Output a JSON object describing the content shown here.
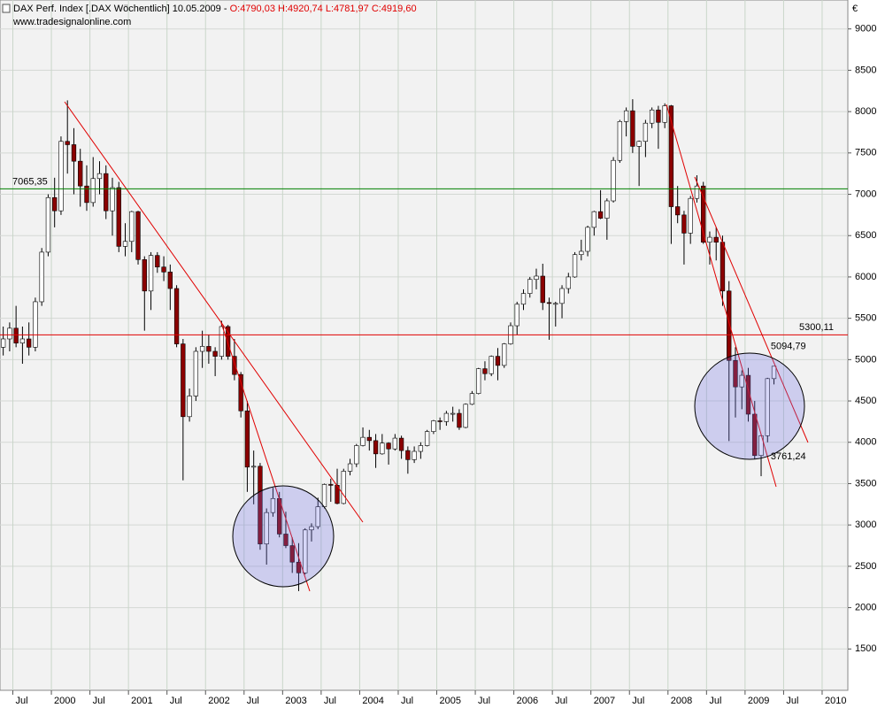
{
  "chart_data": {
    "type": "candlestick",
    "title": "DAX Perf. Index [.DAX  Wöchentlich] 10.05.2009 - ",
    "ohlc_label": "O:4790,03 H:4920,74 L:4781,97 C:4919,60",
    "subtitle": "www.tradesignalonline.com",
    "currency": "€",
    "up_color": "#ffffff",
    "down_color": "#8b0000",
    "x": [
      "1999-05",
      "1999-06",
      "1999-07",
      "1999-08",
      "1999-09",
      "1999-10",
      "1999-11",
      "1999-12",
      "2000-01",
      "2000-02",
      "2000-03",
      "2000-04",
      "2000-05",
      "2000-06",
      "2000-07",
      "2000-08",
      "2000-09",
      "2000-10",
      "2000-11",
      "2000-12",
      "2001-01",
      "2001-02",
      "2001-03",
      "2001-04",
      "2001-05",
      "2001-06",
      "2001-07",
      "2001-08",
      "2001-09",
      "2001-10",
      "2001-11",
      "2001-12",
      "2002-01",
      "2002-02",
      "2002-03",
      "2002-04",
      "2002-05",
      "2002-06",
      "2002-07",
      "2002-08",
      "2002-09",
      "2002-10",
      "2002-11",
      "2002-12",
      "2003-01",
      "2003-02",
      "2003-03",
      "2003-04",
      "2003-05",
      "2003-06",
      "2003-07",
      "2003-08",
      "2003-09",
      "2003-10",
      "2003-11",
      "2003-12",
      "2004-01",
      "2004-02",
      "2004-03",
      "2004-04",
      "2004-05",
      "2004-06",
      "2004-07",
      "2004-08",
      "2004-09",
      "2004-10",
      "2004-11",
      "2004-12",
      "2005-01",
      "2005-02",
      "2005-03",
      "2005-04",
      "2005-05",
      "2005-06",
      "2005-07",
      "2005-08",
      "2005-09",
      "2005-10",
      "2005-11",
      "2005-12",
      "2006-01",
      "2006-02",
      "2006-03",
      "2006-04",
      "2006-05",
      "2006-06",
      "2006-07",
      "2006-08",
      "2006-09",
      "2006-10",
      "2006-11",
      "2006-12",
      "2007-01",
      "2007-02",
      "2007-03",
      "2007-04",
      "2007-05",
      "2007-06",
      "2007-07",
      "2007-08",
      "2007-09",
      "2007-10",
      "2007-11",
      "2007-12",
      "2008-01",
      "2008-02",
      "2008-03",
      "2008-04",
      "2008-05",
      "2008-06",
      "2008-07",
      "2008-08",
      "2008-09",
      "2008-10",
      "2008-11",
      "2008-12",
      "2009-01",
      "2009-02",
      "2009-03",
      "2009-04",
      "2009-05"
    ],
    "ohlc": [
      [
        5150,
        5400,
        5050,
        5250
      ],
      [
        5250,
        5450,
        5100,
        5380
      ],
      [
        5380,
        5650,
        5150,
        5200
      ],
      [
        5200,
        5400,
        4950,
        5250
      ],
      [
        5250,
        5450,
        5050,
        5150
      ],
      [
        5150,
        5750,
        5100,
        5700
      ],
      [
        5700,
        6350,
        5650,
        6300
      ],
      [
        6300,
        7000,
        6250,
        6960
      ],
      [
        6960,
        7200,
        6600,
        6800
      ],
      [
        6800,
        7700,
        6750,
        7640
      ],
      [
        7640,
        8136,
        7250,
        7600
      ],
      [
        7600,
        7800,
        7000,
        7400
      ],
      [
        7400,
        7550,
        6850,
        7100
      ],
      [
        7100,
        7350,
        6800,
        6900
      ],
      [
        6900,
        7450,
        6850,
        7190
      ],
      [
        7190,
        7400,
        7000,
        7250
      ],
      [
        7250,
        7350,
        6700,
        6800
      ],
      [
        6800,
        7200,
        6500,
        7080
      ],
      [
        7080,
        7150,
        6300,
        6370
      ],
      [
        6370,
        6650,
        6250,
        6430
      ],
      [
        6430,
        6800,
        6300,
        6790
      ],
      [
        6790,
        6800,
        6150,
        6210
      ],
      [
        6210,
        6250,
        5350,
        5830
      ],
      [
        5830,
        6300,
        5600,
        6260
      ],
      [
        6260,
        6300,
        6050,
        6120
      ],
      [
        6120,
        6250,
        5950,
        6060
      ],
      [
        6060,
        6150,
        5600,
        5860
      ],
      [
        5860,
        5900,
        5150,
        5190
      ],
      [
        5190,
        5250,
        3540,
        4310
      ],
      [
        4310,
        4650,
        4250,
        4560
      ],
      [
        4560,
        5150,
        4500,
        5100
      ],
      [
        5100,
        5350,
        4900,
        5160
      ],
      [
        5160,
        5300,
        4950,
        5100
      ],
      [
        5100,
        5150,
        4800,
        5040
      ],
      [
        5040,
        5470,
        5000,
        5400
      ],
      [
        5400,
        5420,
        5000,
        5040
      ],
      [
        5040,
        5250,
        4750,
        4820
      ],
      [
        4820,
        4850,
        4300,
        4380
      ],
      [
        4380,
        4500,
        3400,
        3700
      ],
      [
        3700,
        3900,
        3250,
        3710
      ],
      [
        3710,
        3750,
        2700,
        2770
      ],
      [
        2770,
        3200,
        2520,
        3150
      ],
      [
        3150,
        3450,
        3100,
        3320
      ],
      [
        3320,
        3400,
        2850,
        2890
      ],
      [
        2890,
        3160,
        2720,
        2750
      ],
      [
        2750,
        2850,
        2420,
        2550
      ],
      [
        2550,
        2780,
        2200,
        2420
      ],
      [
        2420,
        2960,
        2400,
        2940
      ],
      [
        2940,
        3020,
        2800,
        2980
      ],
      [
        2980,
        3330,
        2950,
        3220
      ],
      [
        3220,
        3500,
        3200,
        3490
      ],
      [
        3490,
        3560,
        3280,
        3480
      ],
      [
        3480,
        3680,
        3250,
        3260
      ],
      [
        3260,
        3680,
        3250,
        3650
      ],
      [
        3650,
        3800,
        3600,
        3740
      ],
      [
        3740,
        3980,
        3700,
        3960
      ],
      [
        3960,
        4180,
        3950,
        4060
      ],
      [
        4060,
        4150,
        3900,
        4020
      ],
      [
        4020,
        4100,
        3690,
        3860
      ],
      [
        3860,
        4100,
        3850,
        3990
      ],
      [
        3990,
        4000,
        3730,
        3920
      ],
      [
        3920,
        4100,
        3900,
        4050
      ],
      [
        4050,
        4080,
        3800,
        3900
      ],
      [
        3900,
        3950,
        3620,
        3790
      ],
      [
        3790,
        3950,
        3750,
        3890
      ],
      [
        3890,
        4000,
        3800,
        3960
      ],
      [
        3960,
        4150,
        3950,
        4130
      ],
      [
        4130,
        4270,
        4100,
        4260
      ],
      [
        4260,
        4300,
        4150,
        4250
      ],
      [
        4250,
        4380,
        4200,
        4350
      ],
      [
        4350,
        4430,
        4250,
        4350
      ],
      [
        4350,
        4400,
        4150,
        4180
      ],
      [
        4180,
        4470,
        4170,
        4460
      ],
      [
        4460,
        4620,
        4450,
        4590
      ],
      [
        4590,
        4900,
        4580,
        4890
      ],
      [
        4890,
        4980,
        4750,
        4830
      ],
      [
        4830,
        5050,
        4800,
        5040
      ],
      [
        5040,
        5140,
        4750,
        4930
      ],
      [
        4930,
        5200,
        4900,
        5190
      ],
      [
        5190,
        5450,
        5180,
        5410
      ],
      [
        5410,
        5700,
        5300,
        5670
      ],
      [
        5670,
        5850,
        5600,
        5800
      ],
      [
        5800,
        6000,
        5750,
        5970
      ],
      [
        5970,
        6100,
        5850,
        6010
      ],
      [
        6010,
        6160,
        5600,
        5690
      ],
      [
        5690,
        5750,
        5240,
        5680
      ],
      [
        5680,
        5700,
        5400,
        5680
      ],
      [
        5680,
        5900,
        5500,
        5860
      ],
      [
        5860,
        6050,
        5800,
        6000
      ],
      [
        6000,
        6300,
        5990,
        6270
      ],
      [
        6270,
        6450,
        6200,
        6310
      ],
      [
        6310,
        6620,
        6250,
        6600
      ],
      [
        6600,
        6800,
        6500,
        6790
      ],
      [
        6790,
        7050,
        6700,
        6710
      ],
      [
        6710,
        6950,
        6450,
        6920
      ],
      [
        6920,
        7450,
        6900,
        7410
      ],
      [
        7410,
        7900,
        7380,
        7880
      ],
      [
        7880,
        8050,
        7700,
        8010
      ],
      [
        8010,
        8150,
        7500,
        7580
      ],
      [
        7580,
        7650,
        7100,
        7640
      ],
      [
        7640,
        7900,
        7450,
        7860
      ],
      [
        7860,
        8050,
        7800,
        8020
      ],
      [
        8020,
        8070,
        7550,
        7870
      ],
      [
        7870,
        8100,
        7800,
        8070
      ],
      [
        8070,
        8080,
        6400,
        6850
      ],
      [
        6850,
        7100,
        6650,
        6750
      ],
      [
        6750,
        6800,
        6150,
        6530
      ],
      [
        6530,
        6980,
        6400,
        6950
      ],
      [
        6950,
        7230,
        6900,
        7100
      ],
      [
        7100,
        7150,
        6400,
        6420
      ],
      [
        6420,
        6550,
        6150,
        6480
      ],
      [
        6480,
        6600,
        6200,
        6420
      ],
      [
        6420,
        6500,
        5650,
        5830
      ],
      [
        5830,
        5950,
        4015,
        4990
      ],
      [
        4990,
        5150,
        4300,
        4670
      ],
      [
        4670,
        4870,
        4400,
        4810
      ],
      [
        4810,
        4900,
        4250,
        4340
      ],
      [
        4340,
        4500,
        3800,
        3840
      ],
      [
        3840,
        4100,
        3590,
        4080
      ],
      [
        4080,
        4780,
        4000,
        4770
      ],
      [
        4770,
        4920,
        4700,
        4920
      ]
    ],
    "xlim": [
      "1999-05",
      "2010-05"
    ],
    "xticks": [
      {
        "value": "1999-07",
        "label": "Jul"
      },
      {
        "value": "2000-01",
        "label": "2000"
      },
      {
        "value": "2000-07",
        "label": "Jul"
      },
      {
        "value": "2001-01",
        "label": "2001"
      },
      {
        "value": "2001-07",
        "label": "Jul"
      },
      {
        "value": "2002-01",
        "label": "2002"
      },
      {
        "value": "2002-07",
        "label": "Jul"
      },
      {
        "value": "2003-01",
        "label": "2003"
      },
      {
        "value": "2003-07",
        "label": "Jul"
      },
      {
        "value": "2004-01",
        "label": "2004"
      },
      {
        "value": "2004-07",
        "label": "Jul"
      },
      {
        "value": "2005-01",
        "label": "2005"
      },
      {
        "value": "2005-07",
        "label": "Jul"
      },
      {
        "value": "2006-01",
        "label": "2006"
      },
      {
        "value": "2006-07",
        "label": "Jul"
      },
      {
        "value": "2007-01",
        "label": "2007"
      },
      {
        "value": "2007-07",
        "label": "Jul"
      },
      {
        "value": "2008-01",
        "label": "2008"
      },
      {
        "value": "2008-07",
        "label": "Jul"
      },
      {
        "value": "2009-01",
        "label": "2009"
      },
      {
        "value": "2009-07",
        "label": "Jul"
      },
      {
        "value": "2010-01",
        "label": "2010"
      }
    ],
    "ylim": [
      1000,
      9350
    ],
    "yticks": [
      1500,
      2000,
      2500,
      3000,
      3500,
      4000,
      4500,
      5000,
      5500,
      6000,
      6500,
      7000,
      7500,
      8000,
      8500,
      9000
    ],
    "grid": true,
    "hlines": [
      {
        "value": 7065.35,
        "label": "7065,35",
        "color": "#008000"
      },
      {
        "value": 5300.11,
        "label": "5300,11",
        "color": "#e00000"
      }
    ],
    "annotations": [
      {
        "x": "2009-05",
        "value": 5094.79,
        "label": "5094,79"
      },
      {
        "x": "2009-05",
        "value": 3761.24,
        "label": "3761,24"
      }
    ]
  }
}
